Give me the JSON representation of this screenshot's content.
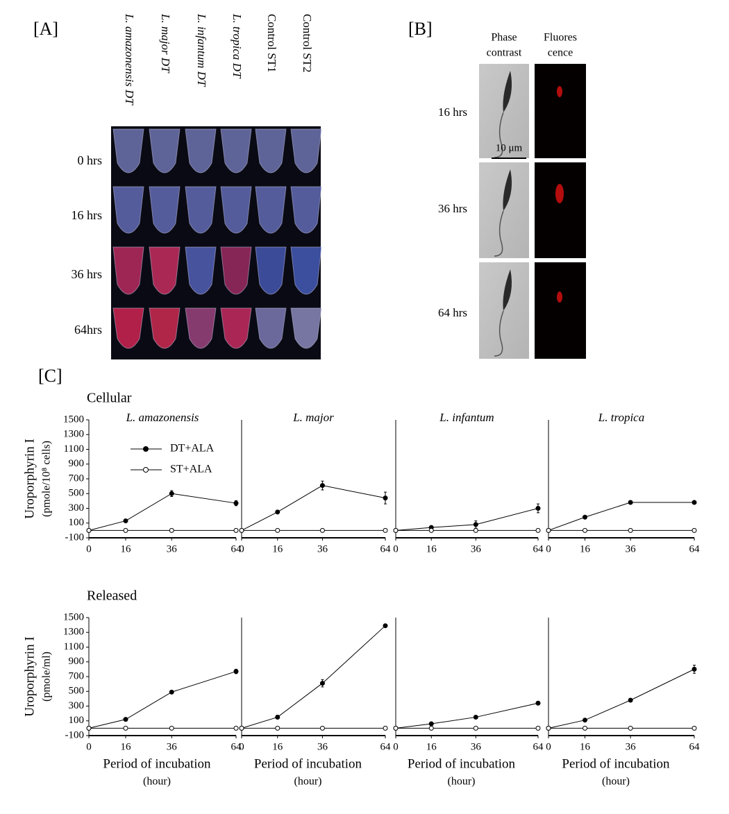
{
  "panel_labels": {
    "a": "[A]",
    "b": "[B]",
    "c": "[C]"
  },
  "panel_a": {
    "columns": [
      "L. amazonensis DT",
      "L. major DT",
      "L. infantum DT",
      "L. tropica DT",
      "Control ST1",
      "Control ST2"
    ],
    "rows": [
      "0 hrs",
      "16 hrs",
      "36 hrs",
      "64hrs"
    ]
  },
  "panel_b": {
    "columns": [
      [
        "Phase",
        "contrast"
      ],
      [
        "Fluores",
        "cence"
      ]
    ],
    "rows": [
      "16 hrs",
      "36 hrs",
      "64 hrs"
    ],
    "scale_bar": "10 μm"
  },
  "chart_data": [
    {
      "type": "line",
      "section": "Cellular",
      "title": "L. amazonensis",
      "ylabel": [
        "Uroporphyrin I",
        "(pmole/10⁸ cells)"
      ],
      "legend": "upper left",
      "x": [
        0,
        16,
        36,
        64
      ],
      "xlim": [
        0,
        64
      ],
      "xticks": [
        0,
        16,
        36,
        64
      ],
      "ylim": [
        -100,
        1500
      ],
      "yticks": [
        -100,
        100,
        300,
        500,
        700,
        900,
        1100,
        1300,
        1500
      ],
      "series": [
        {
          "name": "DT+ALA",
          "color": "#000000",
          "values": [
            0,
            130,
            500,
            370
          ],
          "errors": [
            0,
            15,
            40,
            35
          ]
        },
        {
          "name": "ST+ALA",
          "color": "#000000",
          "values": [
            0,
            0,
            0,
            0
          ]
        }
      ]
    },
    {
      "type": "line",
      "title": "L. major",
      "x": [
        0,
        16,
        36,
        64
      ],
      "xlim": [
        0,
        64
      ],
      "xticks": [
        0,
        16,
        36,
        64
      ],
      "ylim": [
        -100,
        1500
      ],
      "series": [
        {
          "name": "DT+ALA",
          "color": "#000000",
          "values": [
            0,
            250,
            610,
            440
          ],
          "errors": [
            0,
            15,
            60,
            80
          ]
        },
        {
          "name": "ST+ALA",
          "color": "#000000",
          "values": [
            0,
            0,
            0,
            0
          ]
        }
      ]
    },
    {
      "type": "line",
      "title": "L. infantum",
      "x": [
        0,
        16,
        36,
        64
      ],
      "xlim": [
        0,
        64
      ],
      "xticks": [
        0,
        16,
        36,
        64
      ],
      "ylim": [
        -100,
        1500
      ],
      "series": [
        {
          "name": "DT+ALA",
          "color": "#000000",
          "values": [
            0,
            40,
            80,
            300
          ],
          "errors": [
            0,
            10,
            50,
            60
          ]
        },
        {
          "name": "ST+ALA",
          "color": "#000000",
          "values": [
            0,
            0,
            0,
            0
          ]
        }
      ]
    },
    {
      "type": "line",
      "title": "L. tropica",
      "x": [
        0,
        16,
        36,
        64
      ],
      "xlim": [
        0,
        64
      ],
      "xticks": [
        0,
        16,
        36,
        64
      ],
      "ylim": [
        -100,
        1500
      ],
      "series": [
        {
          "name": "DT+ALA",
          "color": "#000000",
          "values": [
            0,
            180,
            380,
            380
          ],
          "errors": [
            0,
            10,
            10,
            10
          ]
        },
        {
          "name": "ST+ALA",
          "color": "#000000",
          "values": [
            0,
            0,
            0,
            0
          ]
        }
      ]
    },
    {
      "type": "line",
      "section": "Released",
      "ylabel": [
        "Uroporphyrin I",
        "(pmole/ml)"
      ],
      "xlabel": [
        "Period of incubation",
        "(hour)"
      ],
      "x": [
        0,
        16,
        36,
        64
      ],
      "xlim": [
        0,
        64
      ],
      "xticks": [
        0,
        16,
        36,
        64
      ],
      "ylim": [
        -100,
        1500
      ],
      "yticks": [
        -100,
        100,
        300,
        500,
        700,
        900,
        1100,
        1300,
        1500
      ],
      "series": [
        {
          "name": "DT+ALA",
          "color": "#000000",
          "values": [
            0,
            120,
            490,
            770
          ],
          "errors": [
            0,
            10,
            15,
            30
          ]
        },
        {
          "name": "ST+ALA",
          "color": "#000000",
          "values": [
            0,
            0,
            0,
            0
          ]
        }
      ]
    },
    {
      "type": "line",
      "xlabel": [
        "Period of incubation",
        "(hour)"
      ],
      "x": [
        0,
        16,
        36,
        64
      ],
      "xlim": [
        0,
        64
      ],
      "xticks": [
        0,
        16,
        36,
        64
      ],
      "ylim": [
        -100,
        1500
      ],
      "series": [
        {
          "name": "DT+ALA",
          "color": "#000000",
          "values": [
            0,
            150,
            610,
            1390
          ],
          "errors": [
            0,
            25,
            50,
            10
          ]
        },
        {
          "name": "ST+ALA",
          "color": "#000000",
          "values": [
            0,
            0,
            0,
            0
          ]
        }
      ]
    },
    {
      "type": "line",
      "xlabel": [
        "Period of incubation",
        "(hour)"
      ],
      "x": [
        0,
        16,
        36,
        64
      ],
      "xlim": [
        0,
        64
      ],
      "xticks": [
        0,
        16,
        36,
        64
      ],
      "ylim": [
        -100,
        1500
      ],
      "series": [
        {
          "name": "DT+ALA",
          "color": "#000000",
          "values": [
            0,
            60,
            150,
            340
          ],
          "errors": [
            0,
            10,
            15,
            15
          ]
        },
        {
          "name": "ST+ALA",
          "color": "#000000",
          "values": [
            0,
            0,
            0,
            0
          ]
        }
      ]
    },
    {
      "type": "line",
      "xlabel": [
        "Period of incubation",
        "(hour)"
      ],
      "x": [
        0,
        16,
        36,
        64
      ],
      "xlim": [
        0,
        64
      ],
      "xticks": [
        0,
        16,
        36,
        64
      ],
      "ylim": [
        -100,
        1500
      ],
      "series": [
        {
          "name": "DT+ALA",
          "color": "#000000",
          "values": [
            0,
            110,
            380,
            800
          ],
          "errors": [
            0,
            10,
            10,
            55
          ]
        },
        {
          "name": "ST+ALA",
          "color": "#000000",
          "values": [
            0,
            0,
            0,
            0
          ]
        }
      ]
    }
  ]
}
